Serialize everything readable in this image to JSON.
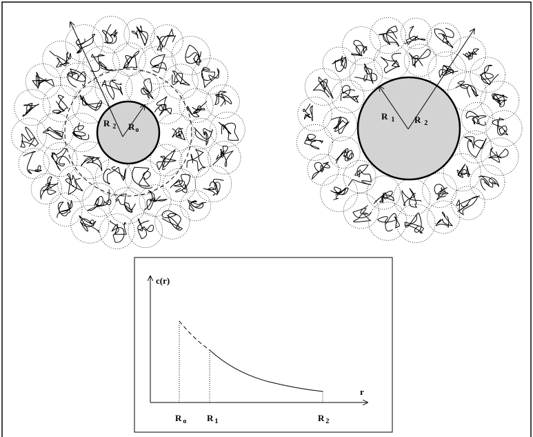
{
  "left_panel": {
    "labels": [
      {
        "main": "R",
        "sub": "2"
      },
      {
        "main": "R",
        "sub": "o"
      }
    ]
  },
  "right_panel": {
    "labels": [
      {
        "main": "R",
        "sub": "1"
      },
      {
        "main": "R",
        "sub": "2"
      }
    ]
  },
  "plot": {
    "y_label": "c(r)",
    "x_label": "r",
    "x_markers": [
      {
        "main": "R",
        "sub": "o"
      },
      {
        "main": "R",
        "sub": "1"
      },
      {
        "main": "R",
        "sub": "2"
      }
    ]
  }
}
